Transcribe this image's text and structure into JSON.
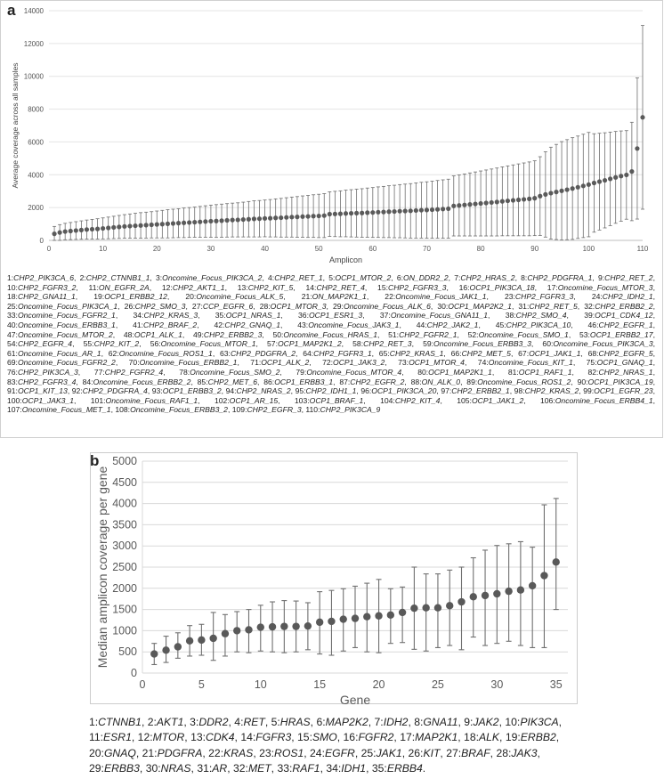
{
  "chart_data": [
    {
      "panel": "a",
      "type": "scatter",
      "title": "",
      "xlabel": "Amplicon",
      "ylabel": "Average coverage across all samples",
      "xlim": [
        0,
        110
      ],
      "ylim": [
        0,
        14000
      ],
      "xticks": [
        0,
        10,
        20,
        30,
        40,
        50,
        60,
        70,
        80,
        90,
        100,
        110
      ],
      "yticks": [
        0,
        2000,
        4000,
        6000,
        8000,
        10000,
        12000,
        14000
      ],
      "means": [
        400,
        480,
        540,
        570,
        600,
        630,
        660,
        680,
        700,
        730,
        760,
        790,
        820,
        850,
        870,
        890,
        910,
        930,
        950,
        970,
        990,
        1010,
        1030,
        1050,
        1070,
        1090,
        1110,
        1130,
        1150,
        1170,
        1180,
        1200,
        1220,
        1240,
        1250,
        1270,
        1290,
        1310,
        1320,
        1340,
        1350,
        1370,
        1380,
        1400,
        1420,
        1430,
        1450,
        1460,
        1480,
        1490,
        1510,
        1600,
        1610,
        1620,
        1640,
        1650,
        1660,
        1670,
        1690,
        1700,
        1720,
        1730,
        1750,
        1760,
        1780,
        1790,
        1800,
        1820,
        1840,
        1850,
        1870,
        1890,
        1910,
        1930,
        2100,
        2130,
        2160,
        2190,
        2220,
        2250,
        2280,
        2310,
        2340,
        2380,
        2410,
        2440,
        2470,
        2500,
        2530,
        2570,
        2700,
        2800,
        2880,
        2950,
        3020,
        3090,
        3160,
        3240,
        3320,
        3400,
        3500,
        3580,
        3660,
        3750,
        3840,
        3920,
        3990,
        4200,
        5600,
        7500
      ],
      "sds": [
        450,
        480,
        500,
        520,
        540,
        560,
        580,
        600,
        620,
        640,
        660,
        680,
        700,
        720,
        740,
        760,
        780,
        790,
        800,
        820,
        840,
        860,
        870,
        880,
        900,
        910,
        920,
        940,
        960,
        980,
        1000,
        1010,
        1020,
        1030,
        1040,
        1060,
        1080,
        1100,
        1110,
        1120,
        1140,
        1160,
        1180,
        1200,
        1220,
        1240,
        1260,
        1280,
        1300,
        1320,
        1340,
        1360,
        1380,
        1400,
        1420,
        1440,
        1460,
        1480,
        1500,
        1520,
        1540,
        1560,
        1580,
        1600,
        1620,
        1640,
        1660,
        1680,
        1700,
        1720,
        1740,
        1760,
        1780,
        1800,
        1830,
        1860,
        1890,
        1920,
        1950,
        1980,
        2010,
        2040,
        2070,
        2100,
        2130,
        2160,
        2190,
        2220,
        2250,
        2280,
        2400,
        2600,
        2800,
        2900,
        3000,
        3050,
        3100,
        3120,
        3150,
        3180,
        3000,
        2950,
        2900,
        2850,
        2800,
        2750,
        2700,
        3000,
        4300,
        5600
      ]
    },
    {
      "panel": "b",
      "type": "scatter",
      "title": "",
      "xlabel": "Gene",
      "ylabel": "Median amplicon coverage per gene",
      "xlim": [
        0,
        36
      ],
      "ylim": [
        0,
        5000
      ],
      "xticks": [
        0,
        5,
        10,
        15,
        20,
        25,
        30,
        35
      ],
      "yticks": [
        0,
        500,
        1000,
        1500,
        2000,
        2500,
        3000,
        3500,
        4000,
        4500,
        5000
      ],
      "x": [
        1,
        2,
        3,
        4,
        5,
        6,
        7,
        8,
        9,
        10,
        11,
        12,
        13,
        14,
        15,
        16,
        17,
        18,
        19,
        20,
        21,
        22,
        23,
        24,
        25,
        26,
        27,
        28,
        29,
        30,
        31,
        32,
        33,
        34,
        35
      ],
      "medians": [
        450,
        540,
        620,
        760,
        780,
        820,
        930,
        1000,
        1020,
        1080,
        1090,
        1100,
        1100,
        1110,
        1200,
        1220,
        1270,
        1290,
        1330,
        1350,
        1370,
        1430,
        1530,
        1540,
        1540,
        1590,
        1680,
        1800,
        1830,
        1870,
        1930,
        1960,
        2060,
        2300,
        2620
      ],
      "lower": [
        200,
        250,
        350,
        400,
        420,
        300,
        400,
        500,
        480,
        520,
        500,
        480,
        500,
        550,
        450,
        420,
        520,
        600,
        500,
        480,
        700,
        720,
        560,
        520,
        600,
        650,
        550,
        850,
        650,
        700,
        750,
        650,
        600,
        600,
        1500
      ],
      "upper": [
        700,
        870,
        950,
        1120,
        1150,
        1430,
        1380,
        1450,
        1500,
        1600,
        1680,
        1710,
        1700,
        1660,
        1920,
        1950,
        1990,
        2050,
        2120,
        2210,
        1990,
        2030,
        2500,
        2340,
        2340,
        2430,
        2500,
        2720,
        2900,
        3010,
        3050,
        3100,
        2970,
        3970,
        4120
      ]
    }
  ],
  "panel_a": {
    "label": "a",
    "legend": [
      {
        "n": "1:",
        "t": "CHP2_PIK3CA_6"
      },
      {
        "n": "2:",
        "t": "CHP2_CTNNB1_1"
      },
      {
        "n": "3:",
        "t": "Oncomine_Focus_PIK3CA_2"
      },
      {
        "n": "4:",
        "t": "CHP2_RET_1"
      },
      {
        "n": "5:",
        "t": "OCP1_MTOR_2"
      },
      {
        "n": "6:",
        "t": "ON_DDR2_2"
      },
      {
        "n": "7:",
        "t": "CHP2_HRAS_2"
      },
      {
        "n": "8:",
        "t": "CHP2_PDGFRA_1"
      },
      {
        "n": "9:",
        "t": "CHP2_RET_2"
      },
      {
        "n": "10:",
        "t": "CHP2_FGFR3_2"
      },
      {
        "n": "11:",
        "t": "ON_EGFR_2A"
      },
      {
        "n": "12:",
        "t": "CHP2_AKT1_1"
      },
      {
        "n": "13:",
        "t": "CHP2_KIT_5"
      },
      {
        "n": "14:",
        "t": "CHP2_RET_4"
      },
      {
        "n": "15:",
        "t": "CHP2_FGFR3_3"
      },
      {
        "n": "16:",
        "t": "OCP1_PIK3CA_18"
      },
      {
        "n": "17:",
        "t": "Oncomine_Focus_MTOR_3"
      },
      {
        "n": "18:",
        "t": "CHP2_GNA11_1"
      },
      {
        "n": "19:",
        "t": "OCP1_ERBB2_12"
      },
      {
        "n": "20:",
        "t": "Oncomine_Focus_ALK_5"
      },
      {
        "n": "21:",
        "t": "ON_MAP2K1_1"
      },
      {
        "n": "22:",
        "t": "Oncomine_Focus_JAK1_1"
      },
      {
        "n": "23:",
        "t": "CHP2_FGFR3_3"
      },
      {
        "n": "24:",
        "t": "CHP2_IDH2_1"
      },
      {
        "n": "25:",
        "t": "Oncomine_Focus_PIK3CA_1"
      },
      {
        "n": "26:",
        "t": "CHP2_SMO_3"
      },
      {
        "n": "27:",
        "t": "CCP_EGFR_6"
      },
      {
        "n": "28:",
        "t": "OCP1_MTOR_3"
      },
      {
        "n": "29:",
        "t": "Oncomine_Focus_ALK_6"
      },
      {
        "n": "30:",
        "t": "OCP1_MAP2K2_1"
      },
      {
        "n": "31:",
        "t": "CHP2_RET_5"
      },
      {
        "n": "32:",
        "t": "CHP2_ERBB2_2"
      },
      {
        "n": "33:",
        "t": "Oncomine_Focus_FGFR2_1"
      },
      {
        "n": "34:",
        "t": "CHP2_KRAS_3"
      },
      {
        "n": "35:",
        "t": "OCP1_NRAS_1"
      },
      {
        "n": "36:",
        "t": "OCP1_ESR1_3"
      },
      {
        "n": "37:",
        "t": "Oncomine_Focus_GNA11_1"
      },
      {
        "n": "38:",
        "t": "CHP2_SMO_4"
      },
      {
        "n": "39:",
        "t": "OCP1_CDK4_12"
      },
      {
        "n": "40:",
        "t": "Oncomine_Focus_ERBB3_1"
      },
      {
        "n": "41:",
        "t": "CHP2_BRAF_2"
      },
      {
        "n": "42:",
        "t": "CHP2_GNAQ_1"
      },
      {
        "n": "43:",
        "t": "Oncomine_Focus_JAK3_1"
      },
      {
        "n": "44:",
        "t": "CHP2_JAK2_1"
      },
      {
        "n": "45:",
        "t": "CHP2_PIK3CA_10"
      },
      {
        "n": "46:",
        "t": "CHP2_EGFR_1"
      },
      {
        "n": "47:",
        "t": "Oncomine_Focus_MTOR_2"
      },
      {
        "n": "48:",
        "t": "OCP1_ALK_1"
      },
      {
        "n": "49:",
        "t": "CHP2_ERBB2_3"
      },
      {
        "n": "50:",
        "t": "Oncomine_Focus_HRAS_1"
      },
      {
        "n": "51:",
        "t": "CHP2_FGFR2_1"
      },
      {
        "n": "52:",
        "t": "Oncomine_Focus_SMO_1"
      },
      {
        "n": "53:",
        "t": "OCP1_ERBB2_17"
      },
      {
        "n": "54:",
        "t": "CHP2_EGFR_4"
      },
      {
        "n": "55:",
        "t": "CHP2_KIT_2"
      },
      {
        "n": "56:",
        "t": "Oncomine_Focus_MTOR_1"
      },
      {
        "n": "57:",
        "t": "OCP1_MAP2K1_2"
      },
      {
        "n": "58:",
        "t": "CHP2_RET_3"
      },
      {
        "n": "59:",
        "t": "Oncomine_Focus_ERBB3_3"
      },
      {
        "n": "60:",
        "t": "Oncomine_Focus_PIK3CA_3"
      },
      {
        "n": "61:",
        "t": "Oncomine_Focus_AR_1"
      },
      {
        "n": "62:",
        "t": "Oncomine_Focus_ROS1_1"
      },
      {
        "n": "63:",
        "t": "CHP2_PDGFRA_2"
      },
      {
        "n": "64:",
        "t": "CHP2_FGFR3_1"
      },
      {
        "n": "65:",
        "t": "CHP2_KRAS_1"
      },
      {
        "n": "66:",
        "t": "CHP2_MET_5"
      },
      {
        "n": "67:",
        "t": "OCP1_JAK1_1"
      },
      {
        "n": "68:",
        "t": "CHP2_EGFR_5"
      },
      {
        "n": "69:",
        "t": "Oncomine_Focus_FGFR2_2"
      },
      {
        "n": "70:",
        "t": "Oncomine_Focus_ERBB2_1"
      },
      {
        "n": "71:",
        "t": "OCP1_ALK_2"
      },
      {
        "n": "72:",
        "t": "OCP1_JAK3_2"
      },
      {
        "n": "73:",
        "t": "OCP1_MTOR_4"
      },
      {
        "n": "74:",
        "t": "Oncomine_Focus_KIT_1"
      },
      {
        "n": "75:",
        "t": "OCP1_GNAQ_1"
      },
      {
        "n": "76:",
        "t": "CHP2_PIK3CA_3"
      },
      {
        "n": "77:",
        "t": "CHP2_FGFR2_4"
      },
      {
        "n": "78:",
        "t": "Oncomine_Focus_SMO_2"
      },
      {
        "n": "79:",
        "t": "Oncomine_Focus_MTOR_4"
      },
      {
        "n": "80:",
        "t": "OCP1_MAP2K1_1"
      },
      {
        "n": "81:",
        "t": "OCP1_RAF1_1"
      },
      {
        "n": "82:",
        "t": "CHP2_NRAS_1"
      },
      {
        "n": "83:",
        "t": "CHP2_FGFR3_4"
      },
      {
        "n": "84:",
        "t": "Oncomine_Focus_ERBB2_2"
      },
      {
        "n": "85:",
        "t": "CHP2_MET_6"
      },
      {
        "n": "86:",
        "t": "OCP1_ERBB3_1"
      },
      {
        "n": "87:",
        "t": "CHP2_EGFR_2"
      },
      {
        "n": "88:",
        "t": "ON_ALK_0"
      },
      {
        "n": "89:",
        "t": "Oncomine_Focus_ROS1_2"
      },
      {
        "n": "90:",
        "t": "OCP1_PIK3CA_19"
      },
      {
        "n": "91:",
        "t": "OCP1_KIT_13"
      },
      {
        "n": "92:",
        "t": "CHP2_PDGFRA_4"
      },
      {
        "n": "93:",
        "t": "OCP1_ERBB3_2"
      },
      {
        "n": "94:",
        "t": "CHP2_NRAS_2"
      },
      {
        "n": "95:",
        "t": "CHP2_IDH1_1"
      },
      {
        "n": "96:",
        "t": "OCP1_PIK3CA_20"
      },
      {
        "n": "97:",
        "t": "CHP2_ERBB2_1"
      },
      {
        "n": "98:",
        "t": "CHP2_KRAS_2"
      },
      {
        "n": "99:",
        "t": "OCP1_EGFR_23"
      },
      {
        "n": "100:",
        "t": "OCP1_JAK3_1"
      },
      {
        "n": "101:",
        "t": "Oncomine_Focus_RAF1_1"
      },
      {
        "n": "102:",
        "t": "OCP1_AR_15"
      },
      {
        "n": "103:",
        "t": "OCP1_BRAF_1"
      },
      {
        "n": "104:",
        "t": "CHP2_KIT_4"
      },
      {
        "n": "105:",
        "t": "OCP1_JAK1_2"
      },
      {
        "n": "106:",
        "t": "Oncomine_Focus_ERBB4_1"
      },
      {
        "n": "107:",
        "t": "Oncomine_Focus_MET_1"
      },
      {
        "n": "108:",
        "t": "Oncomine_Focus_ERBB3_2"
      },
      {
        "n": "109:",
        "t": "CHP2_EGFR_3"
      },
      {
        "n": "110:",
        "t": "CHP2_PIK3CA_9"
      }
    ]
  },
  "panel_b": {
    "label": "b",
    "legend": [
      {
        "n": "1:",
        "t": "CTNNB1"
      },
      {
        "n": "2:",
        "t": "AKT1"
      },
      {
        "n": "3:",
        "t": "DDR2"
      },
      {
        "n": "4:",
        "t": "RET"
      },
      {
        "n": "5:",
        "t": "HRAS"
      },
      {
        "n": "6:",
        "t": "MAP2K2"
      },
      {
        "n": "7:",
        "t": "IDH2"
      },
      {
        "n": "8:",
        "t": "GNA11"
      },
      {
        "n": "9:",
        "t": "JAK2"
      },
      {
        "n": "10:",
        "t": "PIK3CA"
      },
      {
        "n": "11:",
        "t": "ESR1"
      },
      {
        "n": "12:",
        "t": "MTOR"
      },
      {
        "n": "13:",
        "t": "CDK4"
      },
      {
        "n": "14:",
        "t": "FGFR3"
      },
      {
        "n": "15:",
        "t": "SMO"
      },
      {
        "n": "16:",
        "t": "FGFR2"
      },
      {
        "n": "17:",
        "t": "MAP2K1"
      },
      {
        "n": "18:",
        "t": "ALK"
      },
      {
        "n": "19:",
        "t": "ERBB2"
      },
      {
        "n": "20:",
        "t": "GNAQ"
      },
      {
        "n": "21:",
        "t": "PDGFRA"
      },
      {
        "n": "22:",
        "t": "KRAS"
      },
      {
        "n": "23:",
        "t": "ROS1"
      },
      {
        "n": "24:",
        "t": "EGFR"
      },
      {
        "n": "25:",
        "t": "JAK1"
      },
      {
        "n": "26:",
        "t": "KIT"
      },
      {
        "n": "27:",
        "t": "BRAF"
      },
      {
        "n": "28:",
        "t": "JAK3"
      },
      {
        "n": "29:",
        "t": "ERBB3"
      },
      {
        "n": "30:",
        "t": "NRAS"
      },
      {
        "n": "31:",
        "t": "AR"
      },
      {
        "n": "32:",
        "t": "MET"
      },
      {
        "n": "33:",
        "t": "RAF1"
      },
      {
        "n": "34:",
        "t": "IDH1"
      },
      {
        "n": "35:",
        "t": "ERBB4"
      }
    ]
  }
}
